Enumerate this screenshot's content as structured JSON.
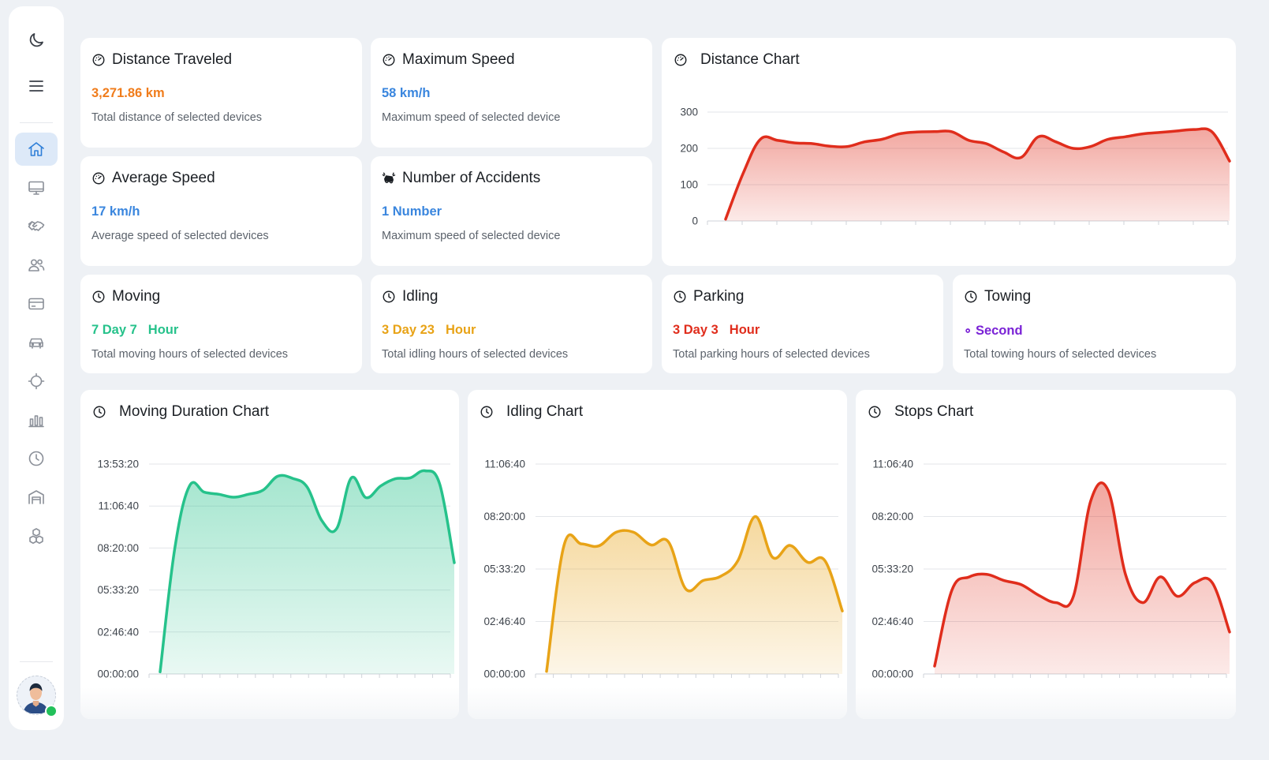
{
  "sidebar": {
    "top_icons": [
      {
        "name": "moon-icon"
      },
      {
        "name": "hamburger-menu-icon"
      }
    ],
    "nav_icons": [
      {
        "name": "home-icon",
        "active": true
      },
      {
        "name": "monitor-icon"
      },
      {
        "name": "handshake-icon"
      },
      {
        "name": "users-icon"
      },
      {
        "name": "credit-card-icon"
      },
      {
        "name": "car-icon"
      },
      {
        "name": "crosshair-icon"
      },
      {
        "name": "bar-chart-icon"
      },
      {
        "name": "clock-icon"
      },
      {
        "name": "warehouse-icon"
      },
      {
        "name": "cubes-icon"
      }
    ],
    "user_status": "online"
  },
  "colors": {
    "orange": "#f07c1b",
    "blue": "#3a86de",
    "green": "#26c28b",
    "amber": "#e8a317",
    "red": "#e02d1c",
    "purple": "#7a22d6",
    "active_nav_bg": "#dde9f8"
  },
  "stats": {
    "distance": {
      "title": "Distance Traveled",
      "value": "3,271.86 km",
      "desc": "Total distance of selected devices",
      "icon": "speedometer-icon"
    },
    "max_speed": {
      "title": "Maximum Speed",
      "value": "58 km/h",
      "desc": "Maximum speed of selected device",
      "icon": "speedometer-icon"
    },
    "avg_speed": {
      "title": "Average Speed",
      "value": "17 km/h",
      "desc": "Average speed of selected devices",
      "icon": "speedometer-icon"
    },
    "accidents": {
      "title": "Number of Accidents",
      "value": "1 Number",
      "desc": "Maximum speed of selected device",
      "icon": "car-crash-icon"
    },
    "moving": {
      "title": "Moving",
      "value_main": "7 Day 7",
      "value_unit": "Hour",
      "desc": "Total moving hours of selected devices",
      "icon": "clock-icon"
    },
    "idling": {
      "title": "Idling",
      "value_main": "3 Day 23",
      "value_unit": "Hour",
      "desc": "Total idling hours of selected devices",
      "icon": "clock-icon"
    },
    "parking": {
      "title": "Parking",
      "value_main": "3 Day 3",
      "value_unit": "Hour",
      "desc": "Total parking hours of selected devices",
      "icon": "clock-icon"
    },
    "towing": {
      "title": "Towing",
      "value_prefix": "∘",
      "value_unit": "Second",
      "desc": "Total towing hours of selected devices",
      "icon": "clock-icon"
    }
  },
  "chart_data": [
    {
      "id": "distance",
      "title": "Distance Chart",
      "type": "area",
      "color": "#e02d1c",
      "ylim": [
        0,
        300
      ],
      "yticks": [
        0,
        100,
        200,
        300
      ],
      "grid": true,
      "xlabel": "",
      "ylabel": "",
      "x_tick_count": 16,
      "values": [
        5,
        130,
        225,
        222,
        215,
        213,
        206,
        205,
        218,
        225,
        240,
        245,
        246,
        246,
        222,
        213,
        190,
        175,
        232,
        218,
        200,
        205,
        225,
        232,
        240,
        244,
        248,
        252,
        245,
        165
      ]
    },
    {
      "id": "moving",
      "title": "Moving Duration Chart",
      "type": "area",
      "color": "#26c28b",
      "ylim": [
        0,
        50000
      ],
      "yticks": [
        0,
        10000,
        20000,
        30000,
        40000,
        50000
      ],
      "ytick_labels": [
        "00:00:00",
        "02:46:40",
        "05:33:20",
        "08:20:00",
        "11:06:40",
        "13:53:20"
      ],
      "grid": true,
      "xlabel": "",
      "ylabel": "",
      "x_tick_count": 18,
      "values": [
        500,
        30000,
        44800,
        43300,
        42800,
        42100,
        42800,
        43800,
        47100,
        46600,
        44500,
        36500,
        34600,
        46700,
        42000,
        44800,
        46500,
        46700,
        48400,
        45300,
        26500
      ]
    },
    {
      "id": "idling",
      "title": "Idling Chart",
      "type": "area",
      "color": "#e8a317",
      "ylim": [
        0,
        40000
      ],
      "yticks": [
        0,
        10000,
        20000,
        30000,
        40000
      ],
      "ytick_labels": [
        "00:00:00",
        "02:46:40",
        "05:33:20",
        "08:20:00",
        "11:06:40"
      ],
      "grid": true,
      "xlabel": "",
      "ylabel": "",
      "x_tick_count": 18,
      "values": [
        500,
        24500,
        24800,
        24400,
        27000,
        27000,
        24600,
        25200,
        16200,
        17800,
        18600,
        21600,
        30000,
        22200,
        24500,
        21300,
        21600,
        12000
      ]
    },
    {
      "id": "stops",
      "title": "Stops Chart",
      "type": "area",
      "color": "#e02d1c",
      "ylim": [
        0,
        40000
      ],
      "yticks": [
        0,
        10000,
        20000,
        30000,
        40000
      ],
      "ytick_labels": [
        "00:00:00",
        "02:46:40",
        "05:33:20",
        "08:20:00",
        "11:06:40"
      ],
      "grid": true,
      "xlabel": "",
      "ylabel": "",
      "x_tick_count": 18,
      "values": [
        1500,
        16000,
        18500,
        19000,
        17800,
        17000,
        15000,
        13600,
        14800,
        33000,
        35000,
        19000,
        13600,
        18500,
        14800,
        17400,
        17400,
        8000
      ]
    }
  ]
}
